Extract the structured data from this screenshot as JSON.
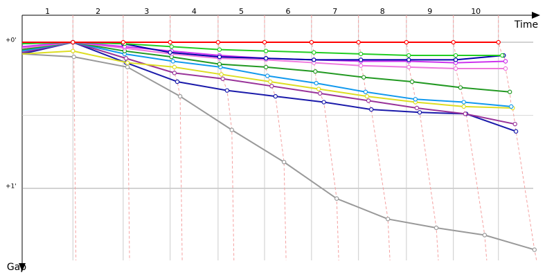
{
  "chart_data": {
    "type": "line",
    "x_label": "Time",
    "y_label": "Gap",
    "laps": [
      1,
      2,
      3,
      4,
      5,
      6,
      7,
      8,
      9,
      10
    ],
    "xlim": [
      0,
      11
    ],
    "ylim": [
      -0.185,
      1.493
    ],
    "yticks": [
      {
        "value": 0,
        "label": "+0'"
      },
      {
        "value": 1,
        "label": "+1'"
      }
    ],
    "minor_grid": [
      0.5
    ],
    "lap_line_color": "#f4a0a0",
    "series": [
      {
        "color": "#ff0000",
        "x": [
          0,
          1.07,
          2.13,
          3.12,
          4.13,
          5.11,
          6.1,
          7.09,
          8.1,
          9.09,
          10.04
        ],
        "values": [
          0,
          0,
          0,
          0,
          0,
          0,
          0,
          0,
          0,
          0,
          0
        ]
      },
      {
        "color": "#22cc22",
        "x": [
          0,
          1.07,
          2.16,
          3.15,
          4.16,
          5.14,
          6.15,
          7.14,
          8.15,
          9.14,
          10.12
        ],
        "values": [
          0.01,
          0,
          0.01,
          0.03,
          0.05,
          0.06,
          0.07,
          0.08,
          0.09,
          0.09,
          0.09
        ]
      },
      {
        "color": "#0000aa",
        "x": [
          0,
          1.07,
          2.13,
          3.12,
          4.16,
          5.14,
          6.15,
          7.14,
          8.15,
          9.14,
          10.15
        ],
        "values": [
          0.01,
          0,
          0.01,
          0.07,
          0.1,
          0.11,
          0.12,
          0.12,
          0.12,
          0.12,
          0.09
        ]
      },
      {
        "color": "#cc33ee",
        "x": [
          0,
          1.07,
          2.16,
          3.15,
          4.16,
          5.14,
          6.15,
          7.14,
          8.15,
          9.14,
          10.19
        ],
        "values": [
          0.03,
          0,
          0.03,
          0.06,
          0.09,
          0.11,
          0.12,
          0.13,
          0.13,
          0.14,
          0.13
        ]
      },
      {
        "color": "#ee77dd",
        "x": [
          0,
          1.07,
          2.16,
          3.15,
          4.16,
          5.14,
          6.15,
          7.14,
          8.15,
          9.14,
          10.19
        ],
        "values": [
          0.04,
          0,
          0.04,
          0.08,
          0.11,
          0.12,
          0.14,
          0.16,
          0.17,
          0.18,
          0.18
        ]
      },
      {
        "color": "#229922",
        "x": [
          0,
          1.07,
          2.16,
          3.15,
          4.16,
          5.14,
          6.18,
          7.2,
          8.22,
          9.24,
          10.28
        ],
        "values": [
          0.05,
          0,
          0.06,
          0.1,
          0.15,
          0.17,
          0.2,
          0.24,
          0.27,
          0.31,
          0.34
        ]
      },
      {
        "color": "#1199ee",
        "x": [
          0,
          1.07,
          2.16,
          3.18,
          4.18,
          5.17,
          6.2,
          7.24,
          8.29,
          9.31,
          10.31
        ],
        "values": [
          0.06,
          0,
          0.08,
          0.13,
          0.17,
          0.23,
          0.28,
          0.34,
          0.39,
          0.41,
          0.44
        ]
      },
      {
        "color": "#dddd22",
        "x": [
          0,
          1.07,
          2.22,
          3.21,
          4.2,
          5.23,
          6.25,
          7.27,
          8.29,
          9.31,
          10.34
        ],
        "values": [
          0.08,
          0.06,
          0.14,
          0.17,
          0.22,
          0.27,
          0.32,
          0.37,
          0.41,
          0.44,
          0.45
        ]
      },
      {
        "color": "#993399",
        "x": [
          0,
          1.07,
          2.19,
          3.21,
          4.23,
          5.26,
          6.28,
          7.3,
          8.32,
          9.34,
          10.39
        ],
        "values": [
          0.07,
          0,
          0.11,
          0.21,
          0.25,
          0.3,
          0.35,
          0.4,
          0.45,
          0.49,
          0.56
        ]
      },
      {
        "color": "#1a1aaa",
        "x": [
          0,
          1.07,
          2.19,
          3.27,
          4.32,
          5.34,
          6.36,
          7.36,
          8.38,
          9.36,
          10.41
        ],
        "values": [
          0.08,
          0,
          0.14,
          0.27,
          0.33,
          0.37,
          0.41,
          0.46,
          0.48,
          0.49,
          0.61
        ]
      },
      {
        "color": "#999999",
        "x": [
          0,
          1.09,
          2.22,
          3.33,
          4.42,
          5.52,
          6.63,
          7.71,
          8.73,
          9.75,
          10.8
        ],
        "values": [
          0.08,
          0.1,
          0.17,
          0.37,
          0.6,
          0.82,
          1.07,
          1.21,
          1.27,
          1.32,
          1.42
        ]
      }
    ]
  }
}
